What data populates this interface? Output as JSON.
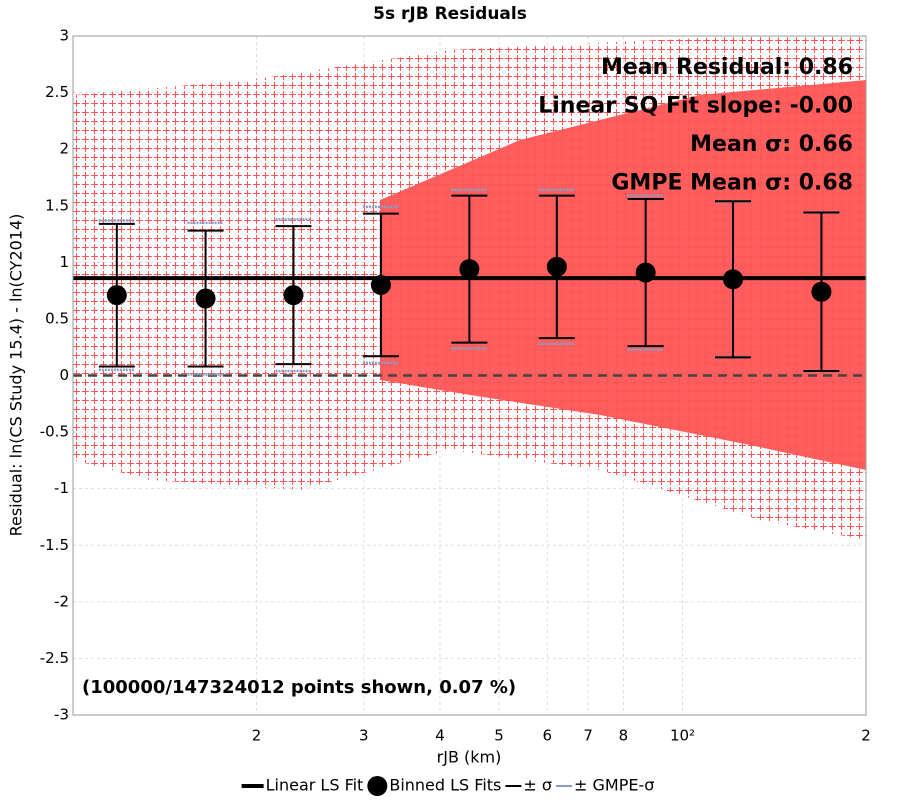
{
  "chart_data": {
    "type": "scatter",
    "title": "5s rJB Residuals",
    "x_label": "rJB (km)",
    "y_label": "Residual: ln(CS Study 15.4) - ln(CY2014)",
    "log_x": true,
    "xlim": [
      10,
      200
    ],
    "xticks": [
      {
        "value": 20,
        "label": "2"
      },
      {
        "value": 30,
        "label": "3"
      },
      {
        "value": 40,
        "label": "4"
      },
      {
        "value": 50,
        "label": "5"
      },
      {
        "value": 60,
        "label": "6"
      },
      {
        "value": 70,
        "label": "7"
      },
      {
        "value": 80,
        "label": "8"
      },
      {
        "value": 100,
        "label": "10²"
      },
      {
        "value": 200,
        "label": "2"
      }
    ],
    "ylim": [
      -3,
      3
    ],
    "yticks": [
      -3,
      -2.5,
      -2,
      -1.5,
      -1,
      -0.5,
      0,
      0.5,
      1,
      1.5,
      2,
      2.5,
      3
    ],
    "grid": true,
    "scatter_color": "#ff5555",
    "reference_line": 0,
    "annotations": [
      "Mean Residual: 0.86",
      "Linear SQ Fit slope: -0.00",
      "Mean σ: 0.66",
      "GMPE Mean σ: 0.68"
    ],
    "footnote": "(100000/147324012 points shown, 0.07 %)",
    "series": [
      {
        "name": "Linear LS Fit",
        "color": "#000000",
        "x": [
          10,
          200
        ],
        "values": [
          0.86,
          0.86
        ]
      },
      {
        "name": "Binned LS Fits",
        "color": "#000000",
        "x": [
          11.8,
          16.5,
          23.0,
          32.0,
          44.7,
          62.2,
          87.0,
          121,
          169
        ],
        "values": [
          0.71,
          0.68,
          0.71,
          0.8,
          0.94,
          0.96,
          0.91,
          0.85,
          0.74
        ]
      },
      {
        "name": "± σ",
        "color": "#000000",
        "values": [
          0.63,
          0.6,
          0.61,
          0.63,
          0.65,
          0.63,
          0.65,
          0.69,
          0.7
        ]
      },
      {
        "name": "± GMPE-σ",
        "color": "#8a9cc4",
        "values": [
          0.66,
          0.67,
          0.67,
          0.69,
          0.7,
          0.68,
          0.68,
          0.69,
          0.7
        ]
      }
    ]
  }
}
